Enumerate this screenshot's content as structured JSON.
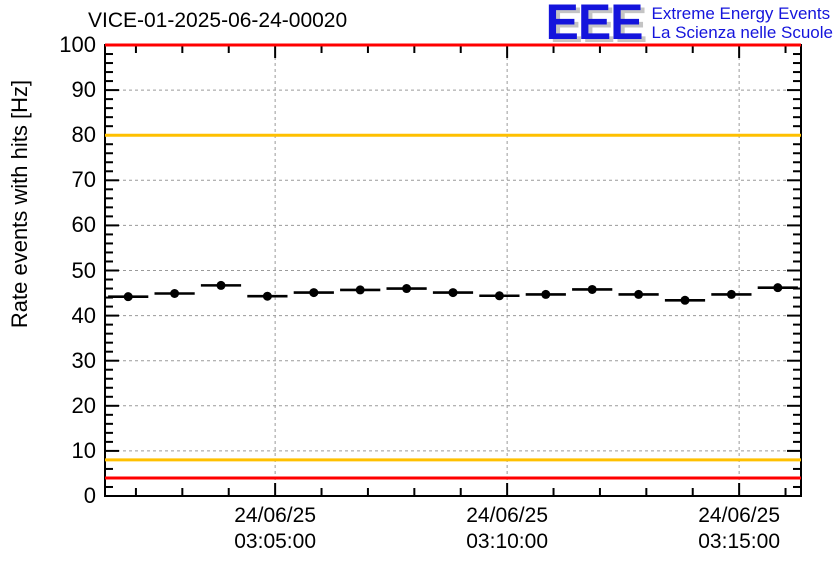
{
  "logo": {
    "acronym": "EEE",
    "line1": "Extreme Energy Events",
    "line2": "La Scienza nelle Scuole",
    "blue": "#1414dc",
    "shadow": "#c4c4c4"
  },
  "chart_data": {
    "type": "scatter",
    "title": "VICE-01-2025-06-24-00020",
    "xlabel": "",
    "ylabel": "Rate events with hits [Hz]",
    "ylim": [
      0,
      100
    ],
    "y_major_step": 10,
    "y_minor_step": 2,
    "xlim": [
      "03:01:20",
      "03:16:20"
    ],
    "x_date": "24/06/25",
    "x_major_ticks": [
      "03:05:00",
      "03:10:00",
      "03:15:00"
    ],
    "x_minor_step_s": 60,
    "grid": "dashed-on-major",
    "legend": "none",
    "series": [
      {
        "name": "rate-events-with-hits",
        "marker": "filled-circle",
        "color": "#000000",
        "x_error_s": 26,
        "points": [
          {
            "time": "03:01:50",
            "rate": 44.2
          },
          {
            "time": "03:02:50",
            "rate": 44.9
          },
          {
            "time": "03:03:50",
            "rate": 46.7
          },
          {
            "time": "03:04:50",
            "rate": 44.3
          },
          {
            "time": "03:05:50",
            "rate": 45.1
          },
          {
            "time": "03:06:50",
            "rate": 45.7
          },
          {
            "time": "03:07:50",
            "rate": 46.0
          },
          {
            "time": "03:08:50",
            "rate": 45.1
          },
          {
            "time": "03:09:50",
            "rate": 44.4
          },
          {
            "time": "03:10:50",
            "rate": 44.7
          },
          {
            "time": "03:11:50",
            "rate": 45.8
          },
          {
            "time": "03:12:50",
            "rate": 44.7
          },
          {
            "time": "03:13:50",
            "rate": 43.4
          },
          {
            "time": "03:14:50",
            "rate": 44.7
          },
          {
            "time": "03:15:50",
            "rate": 46.2
          }
        ]
      }
    ],
    "threshold_lines": [
      {
        "value": 100,
        "color": "#ff0000"
      },
      {
        "value": 80,
        "color": "#ffc000"
      },
      {
        "value": 8,
        "color": "#ffc000"
      },
      {
        "value": 4,
        "color": "#ff0000"
      }
    ],
    "colors": {
      "grid": "#9a9a9a",
      "frame": "#000000",
      "red_threshold": "#ff0000",
      "orange_threshold": "#ffc000"
    }
  }
}
